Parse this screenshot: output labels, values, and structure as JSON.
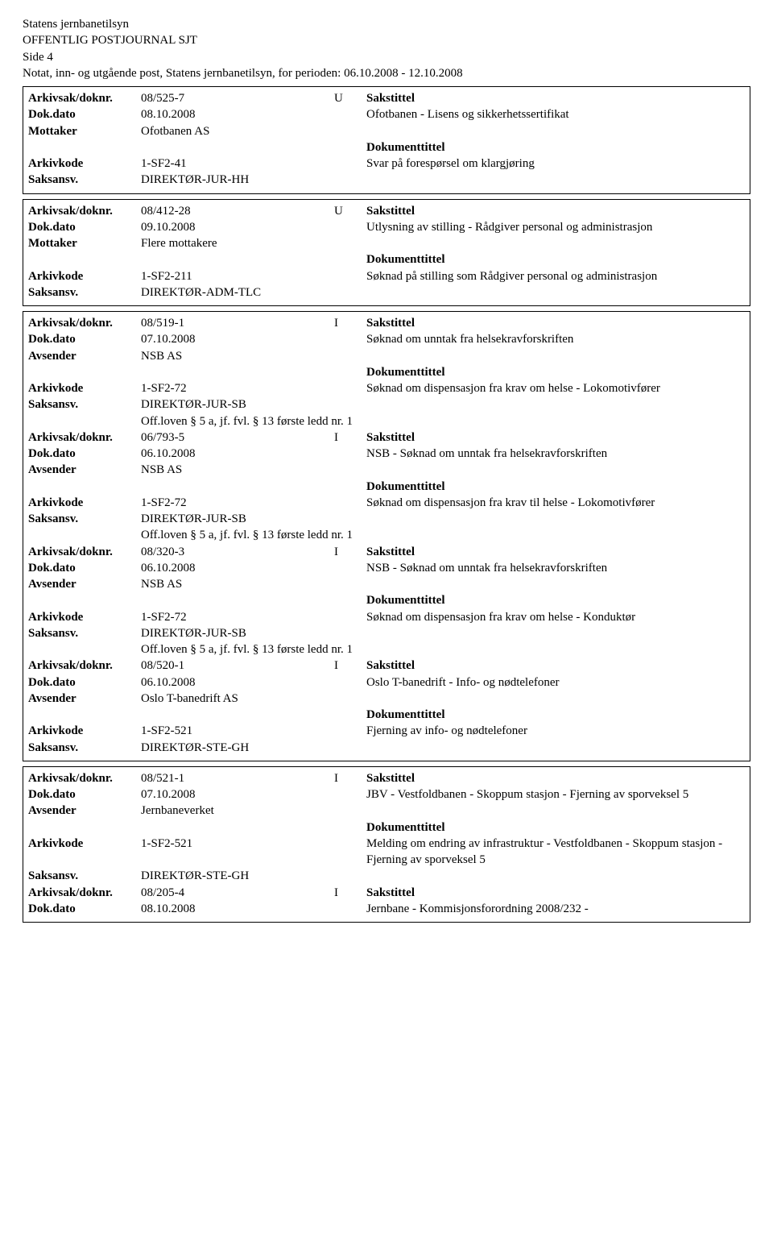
{
  "header": {
    "org": "Statens jernbanetilsyn",
    "journal": "OFFENTLIG POSTJOURNAL SJT",
    "page": "Side 4",
    "desc": "Notat, inn- og utgående post, Statens jernbanetilsyn, for perioden: 06.10.2008 - 12.10.2008"
  },
  "labels": {
    "arkivsak": "Arkivsak/doknr.",
    "dokdato": "Dok.dato",
    "mottaker": "Mottaker",
    "avsender": "Avsender",
    "arkivkode": "Arkivkode",
    "saksansv": "Saksansv.",
    "sakstittel": "Sakstittel",
    "dokumenttittel": "Dokumenttittel"
  },
  "boxes": [
    {
      "entries": [
        {
          "arkivsak": "08/525-7",
          "iu": "U",
          "dokdato": "08.10.2008",
          "partyLabel": "Mottaker",
          "party": "Ofotbanen AS",
          "arkivkode": "1-SF2-41",
          "saksansv": "DIREKTØR-JUR-HH",
          "offloven": null,
          "sakstittel": "Ofotbanen - Lisens og sikkerhetssertifikat",
          "doktittel": "Svar på forespørsel om klargjøring"
        }
      ]
    },
    {
      "entries": [
        {
          "arkivsak": "08/412-28",
          "iu": "U",
          "dokdato": "09.10.2008",
          "partyLabel": "Mottaker",
          "party": "Flere mottakere",
          "arkivkode": "1-SF2-211",
          "saksansv": "DIREKTØR-ADM-TLC",
          "offloven": null,
          "sakstittel": "Utlysning av stilling - Rådgiver personal og administrasjon",
          "doktittel": "Søknad på stilling som Rådgiver personal og administrasjon"
        }
      ]
    },
    {
      "entries": [
        {
          "arkivsak": "08/519-1",
          "iu": "I",
          "dokdato": "07.10.2008",
          "partyLabel": "Avsender",
          "party": "NSB AS",
          "arkivkode": "1-SF2-72",
          "saksansv": "DIREKTØR-JUR-SB",
          "offloven": "Off.loven § 5 a, jf. fvl. § 13 første ledd nr. 1",
          "sakstittel": "Søknad om unntak fra helsekravforskriften",
          "doktittel": "Søknad om dispensasjon fra krav om helse - Lokomotivfører"
        },
        {
          "arkivsak": "06/793-5",
          "iu": "I",
          "dokdato": "06.10.2008",
          "partyLabel": "Avsender",
          "party": "NSB AS",
          "arkivkode": "1-SF2-72",
          "saksansv": "DIREKTØR-JUR-SB",
          "offloven": "Off.loven § 5 a, jf. fvl. § 13 første ledd nr. 1",
          "sakstittel": "NSB - Søknad om unntak fra helsekravforskriften",
          "doktittel": "Søknad om dispensasjon fra krav til helse - Lokomotivfører"
        },
        {
          "arkivsak": "08/320-3",
          "iu": "I",
          "dokdato": "06.10.2008",
          "partyLabel": "Avsender",
          "party": "NSB AS",
          "arkivkode": "1-SF2-72",
          "saksansv": "DIREKTØR-JUR-SB",
          "offloven": "Off.loven § 5 a, jf. fvl. § 13 første ledd nr. 1",
          "sakstittel": "NSB - Søknad om unntak fra helsekravforskriften",
          "doktittel": "Søknad om dispensasjon fra krav om helse - Konduktør"
        },
        {
          "arkivsak": "08/520-1",
          "iu": "I",
          "dokdato": "06.10.2008",
          "partyLabel": "Avsender",
          "party": "Oslo T-banedrift AS",
          "arkivkode": "1-SF2-521",
          "saksansv": "DIREKTØR-STE-GH",
          "offloven": null,
          "sakstittel": "Oslo T-banedrift - Info- og nødtelefoner",
          "doktittel": "Fjerning av info- og nødtelefoner"
        }
      ]
    },
    {
      "entries": [
        {
          "arkivsak": "08/521-1",
          "iu": "I",
          "dokdato": "07.10.2008",
          "partyLabel": "Avsender",
          "party": "Jernbaneverket",
          "arkivkode": "1-SF2-521",
          "saksansv": "DIREKTØR-STE-GH",
          "offloven": null,
          "sakstittel": "JBV - Vestfoldbanen - Skoppum stasjon - Fjerning av sporveksel 5",
          "doktittel": "Melding om endring av infrastruktur - Vestfoldbanen - Skoppum stasjon - Fjerning av sporveksel 5"
        },
        {
          "arkivsak": "08/205-4",
          "iu": "I",
          "dokdato": "08.10.2008",
          "partyLabel": null,
          "party": null,
          "arkivkode": null,
          "saksansv": null,
          "offloven": null,
          "sakstittel": "Jernbane - Kommisjonsforordning 2008/232 -",
          "doktittel": null
        }
      ]
    }
  ]
}
